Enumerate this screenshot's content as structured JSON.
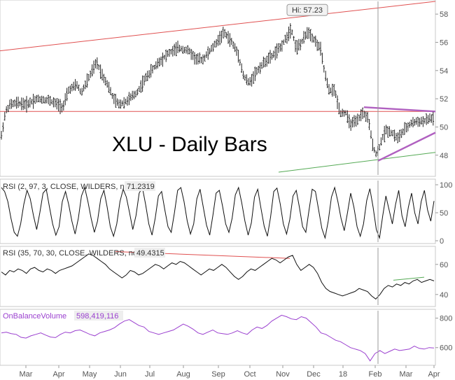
{
  "chart_data": {
    "type": "line",
    "title": "XLU - Daily Bars",
    "x_labels": [
      "Mar",
      "Apr",
      "May",
      "Jun",
      "Jul",
      "Aug",
      "Sep",
      "Oct",
      "Nov",
      "Dec",
      "18",
      "Feb",
      "Mar",
      "Apr"
    ],
    "grid": false,
    "panels": [
      {
        "name": "price",
        "label": "",
        "value": "",
        "ylim": [
          46.5,
          59
        ],
        "y_ticks": [
          48,
          50,
          52,
          54,
          56,
          58
        ],
        "callout": "Hi: 57.23",
        "anchors": [
          [
            0,
            48.8
          ],
          [
            8,
            51.1
          ],
          [
            15,
            51.6
          ],
          [
            25,
            51.7
          ],
          [
            38,
            51.6
          ],
          [
            52,
            52.0
          ],
          [
            70,
            51.9
          ],
          [
            90,
            51.4
          ],
          [
            98,
            52.6
          ],
          [
            110,
            53.0
          ],
          [
            116,
            52.4
          ],
          [
            125,
            53.3
          ],
          [
            138,
            54.6
          ],
          [
            146,
            53.7
          ],
          [
            154,
            53.0
          ],
          [
            162,
            52.0
          ],
          [
            170,
            51.6
          ],
          [
            180,
            51.8
          ],
          [
            195,
            52.4
          ],
          [
            210,
            53.6
          ],
          [
            225,
            54.5
          ],
          [
            240,
            55.2
          ],
          [
            255,
            55.6
          ],
          [
            270,
            55.4
          ],
          [
            280,
            54.8
          ],
          [
            290,
            54.8
          ],
          [
            305,
            55.7
          ],
          [
            320,
            56.7
          ],
          [
            330,
            56.1
          ],
          [
            340,
            55.2
          ],
          [
            348,
            53.6
          ],
          [
            356,
            53.1
          ],
          [
            366,
            53.9
          ],
          [
            378,
            54.6
          ],
          [
            388,
            55.0
          ],
          [
            400,
            55.6
          ],
          [
            410,
            56.4
          ],
          [
            416,
            57.0
          ],
          [
            423,
            55.6
          ],
          [
            430,
            55.9
          ],
          [
            440,
            56.8
          ],
          [
            450,
            56.1
          ],
          [
            458,
            55.5
          ],
          [
            464,
            53.8
          ],
          [
            470,
            52.6
          ],
          [
            478,
            52.6
          ],
          [
            486,
            51.0
          ],
          [
            494,
            51.0
          ],
          [
            500,
            50.2
          ],
          [
            510,
            50.4
          ],
          [
            518,
            51.0
          ],
          [
            526,
            50.6
          ],
          [
            532,
            48.8
          ],
          [
            538,
            48.0
          ],
          [
            546,
            49.2
          ],
          [
            552,
            49.8
          ],
          [
            560,
            49.6
          ],
          [
            568,
            49.2
          ],
          [
            578,
            49.8
          ],
          [
            588,
            50.3
          ],
          [
            598,
            50.4
          ],
          [
            606,
            50.4
          ],
          [
            614,
            50.6
          ],
          [
            622,
            50.6
          ]
        ],
        "lines": [
          {
            "name": "upper-channel",
            "color": "#e05050",
            "points": [
              [
                0,
                55.4
              ],
              [
                622,
                58.9
              ]
            ]
          },
          {
            "name": "support-line",
            "color": "#e05050",
            "points": [
              [
                0,
                51.1
              ],
              [
                622,
                51.1
              ]
            ]
          },
          {
            "name": "lower-channel",
            "color": "#55aa55",
            "points": [
              [
                398,
                46.8
              ],
              [
                622,
                48.2
              ]
            ]
          },
          {
            "name": "triangle-top",
            "color": "#b060c0",
            "points": [
              [
                520,
                51.4
              ],
              [
                622,
                51.1
              ]
            ]
          },
          {
            "name": "triangle-bottom",
            "color": "#b060c0",
            "points": [
              [
                540,
                47.6
              ],
              [
                622,
                49.6
              ]
            ]
          }
        ]
      },
      {
        "name": "rsi-short",
        "label": "RSI (2, 97, 3, CLOSE, WILDERS, no)",
        "value": "71.2319",
        "ylim": [
          -5,
          110
        ],
        "y_ticks": [
          0,
          50,
          100
        ],
        "values": [
          95,
          88,
          70,
          40,
          15,
          8,
          30,
          65,
          90,
          75,
          45,
          20,
          50,
          85,
          92,
          60,
          30,
          10,
          25,
          70,
          88,
          65,
          35,
          12,
          40,
          80,
          95,
          70,
          40,
          15,
          35,
          75,
          90,
          60,
          25,
          8,
          30,
          70,
          92,
          78,
          50,
          20,
          45,
          85,
          95,
          65,
          30,
          10,
          40,
          80,
          88,
          55,
          25,
          15,
          50,
          90,
          95,
          70,
          35,
          12,
          30,
          75,
          92,
          60,
          28,
          10,
          45,
          85,
          90,
          62,
          30,
          15,
          40,
          82,
          95,
          68,
          35,
          10,
          32,
          78,
          92,
          58,
          26,
          8,
          42,
          88,
          94,
          66,
          30,
          12,
          38,
          80,
          90,
          60,
          25,
          15,
          55,
          92,
          88,
          55,
          22,
          5,
          35,
          78,
          95,
          70,
          40,
          18,
          50,
          85,
          60,
          25,
          8,
          30,
          72,
          93,
          60,
          20,
          5,
          45,
          80,
          55,
          30,
          65,
          90,
          45,
          25,
          60,
          85,
          50,
          30,
          70,
          90,
          55,
          35,
          71
        ]
      },
      {
        "name": "rsi-long",
        "label": "RSI (35, 70, 30, CLOSE, WILDERS, no)",
        "value": "49.4315",
        "ylim": [
          32,
          72
        ],
        "y_ticks": [
          40,
          60
        ],
        "values": [
          55,
          53,
          56,
          55,
          57,
          56,
          54,
          57,
          58,
          56,
          55,
          57,
          56,
          54,
          56,
          57,
          58,
          59,
          61,
          63,
          65,
          67,
          66,
          64,
          62,
          60,
          57,
          55,
          53,
          51,
          53,
          56,
          55,
          53,
          54,
          56,
          58,
          60,
          59,
          57,
          59,
          61,
          60,
          62,
          61,
          59,
          57,
          55,
          53,
          55,
          57,
          56,
          58,
          60,
          58,
          55,
          52,
          50,
          52,
          55,
          57,
          56,
          58,
          60,
          62,
          64,
          63,
          61,
          63,
          65,
          66,
          60,
          56,
          58,
          60,
          58,
          54,
          48,
          44,
          42,
          41,
          40,
          39,
          40,
          41,
          42,
          44,
          43,
          42,
          39,
          37,
          40,
          44,
          46,
          45,
          47,
          46,
          48,
          47,
          49,
          50,
          48,
          49,
          50,
          49
        ],
        "lines": [
          {
            "name": "divergence-red",
            "color": "#e05050",
            "points": [
              [
                165,
                68.5
              ],
              [
                414,
                64.0
              ]
            ]
          },
          {
            "name": "divergence-green",
            "color": "#55aa55",
            "points": [
              [
                562,
                49.5
              ],
              [
                606,
                51.5
              ]
            ]
          }
        ]
      },
      {
        "name": "obv",
        "label": "OnBalanceVolume",
        "value": "598,419,116",
        "ylim": [
          480,
          860
        ],
        "y_ticks": [
          600,
          800
        ],
        "values": [
          700,
          705,
          695,
          690,
          670,
          665,
          680,
          690,
          700,
          685,
          672,
          668,
          690,
          705,
          700,
          715,
          720,
          705,
          690,
          680,
          700,
          710,
          720,
          735,
          760,
          780,
          790,
          770,
          750,
          740,
          710,
          700,
          690,
          700,
          710,
          720,
          740,
          760,
          745,
          725,
          700,
          690,
          705,
          720,
          700,
          695,
          690,
          700,
          715,
          700,
          690,
          720,
          740,
          730,
          750,
          780,
          800,
          820,
          810,
          795,
          790,
          810,
          800,
          770,
          740,
          700,
          690,
          670,
          650,
          640,
          620,
          600,
          590,
          580,
          560,
          510,
          560,
          580,
          560,
          575,
          590,
          580,
          585,
          590,
          610,
          595,
          590,
          600,
          598
        ]
      }
    ],
    "event_marker_x": 540
  }
}
